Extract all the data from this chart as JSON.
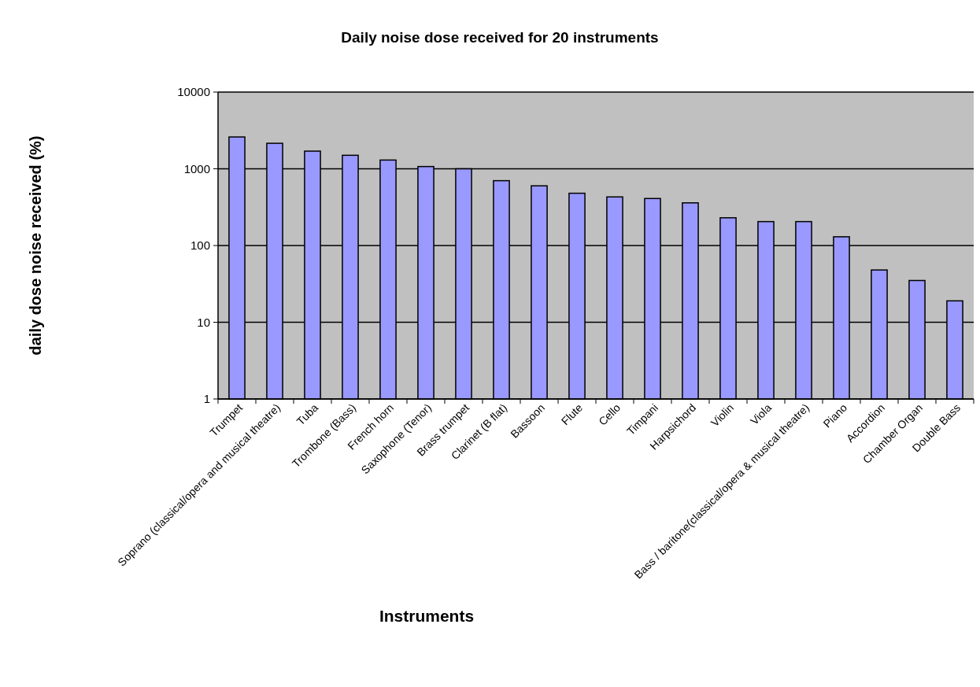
{
  "chart_data": {
    "type": "bar",
    "title": "Daily noise dose received for 20 instruments",
    "xlabel": "Instruments",
    "ylabel": "daily dose noise received (%)",
    "categories": [
      "Trumpet",
      "Soprano (classical/opera and musical theatre)",
      "Tuba",
      "Trombone (Bass)",
      "French horn",
      "Saxophone (Tenor)",
      "Brass trumpet",
      "Clarinet (B flat)",
      "Bassoon",
      "Flute",
      "Cello",
      "Timpani",
      "Harpsichord",
      "Violin",
      "Viola",
      "Bass / baritone(classical/opera & musical theatre)",
      "Piano",
      "Accordion",
      "Chamber Organ",
      "Double Bass"
    ],
    "values": [
      2600,
      2150,
      1700,
      1500,
      1300,
      1070,
      1000,
      700,
      600,
      480,
      430,
      410,
      360,
      230,
      205,
      205,
      130,
      48,
      35,
      19
    ],
    "color": "#9999ff",
    "log": true,
    "ylim": [
      1,
      10000
    ],
    "yticks": [
      1,
      10,
      100,
      1000,
      10000
    ],
    "grid": "y"
  }
}
